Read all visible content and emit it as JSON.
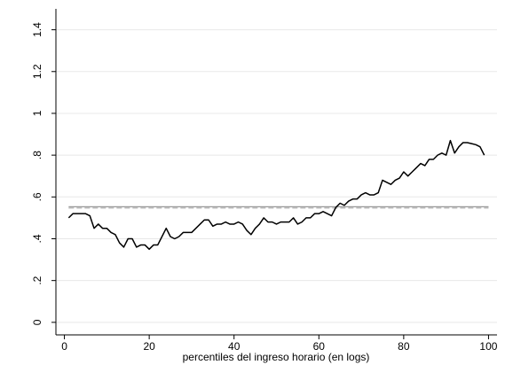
{
  "chart_data": {
    "type": "line",
    "x_label": "percentiles del ingreso horario (en logs)",
    "x": [
      1,
      2,
      3,
      4,
      5,
      6,
      7,
      8,
      9,
      10,
      11,
      12,
      13,
      14,
      15,
      16,
      17,
      18,
      19,
      20,
      21,
      22,
      23,
      24,
      25,
      26,
      27,
      28,
      29,
      30,
      31,
      32,
      33,
      34,
      35,
      36,
      37,
      38,
      39,
      40,
      41,
      42,
      43,
      44,
      45,
      46,
      47,
      48,
      49,
      50,
      51,
      52,
      53,
      54,
      55,
      56,
      57,
      58,
      59,
      60,
      61,
      62,
      63,
      64,
      65,
      66,
      67,
      68,
      69,
      70,
      71,
      72,
      73,
      74,
      75,
      76,
      77,
      78,
      79,
      80,
      81,
      82,
      83,
      84,
      85,
      86,
      87,
      88,
      89,
      90,
      91,
      92,
      93,
      94,
      95,
      96,
      97,
      98,
      99
    ],
    "series": [
      {
        "color": "#000000",
        "values": [
          0.5,
          0.52,
          0.52,
          0.52,
          0.52,
          0.51,
          0.45,
          0.47,
          0.45,
          0.45,
          0.43,
          0.42,
          0.38,
          0.36,
          0.4,
          0.4,
          0.36,
          0.37,
          0.37,
          0.35,
          0.37,
          0.37,
          0.41,
          0.45,
          0.41,
          0.4,
          0.41,
          0.43,
          0.43,
          0.43,
          0.45,
          0.47,
          0.49,
          0.49,
          0.46,
          0.47,
          0.47,
          0.48,
          0.47,
          0.47,
          0.48,
          0.47,
          0.44,
          0.42,
          0.45,
          0.47,
          0.5,
          0.48,
          0.48,
          0.47,
          0.48,
          0.48,
          0.48,
          0.5,
          0.47,
          0.48,
          0.5,
          0.5,
          0.52,
          0.52,
          0.53,
          0.52,
          0.51,
          0.55,
          0.57,
          0.56,
          0.58,
          0.59,
          0.59,
          0.61,
          0.62,
          0.61,
          0.61,
          0.62,
          0.68,
          0.67,
          0.66,
          0.68,
          0.69,
          0.72,
          0.7,
          0.72,
          0.74,
          0.76,
          0.75,
          0.78,
          0.78,
          0.8,
          0.81,
          0.8,
          0.87,
          0.81,
          0.84,
          0.86,
          0.86,
          0.855,
          0.85,
          0.84,
          0.8
        ]
      }
    ],
    "hlines": [
      {
        "value": 0.553,
        "color": "#999999"
      },
      {
        "value": 0.547,
        "color": "#bbbbbb"
      }
    ],
    "xlim": [
      -2,
      102
    ],
    "ylim": [
      -0.06,
      1.5
    ],
    "xticks": [
      0,
      20,
      40,
      60,
      80,
      100
    ],
    "yticks": [
      0,
      {
        "value": 0.2,
        "label": ".2"
      },
      {
        "value": 0.4,
        "label": ".4"
      },
      {
        "value": 0.6,
        "label": ".6"
      },
      {
        "value": 0.8,
        "label": ".8"
      },
      1,
      {
        "value": 1.2,
        "label": "1.2"
      },
      {
        "value": 1.4,
        "label": "1.4"
      }
    ],
    "grid": true
  }
}
